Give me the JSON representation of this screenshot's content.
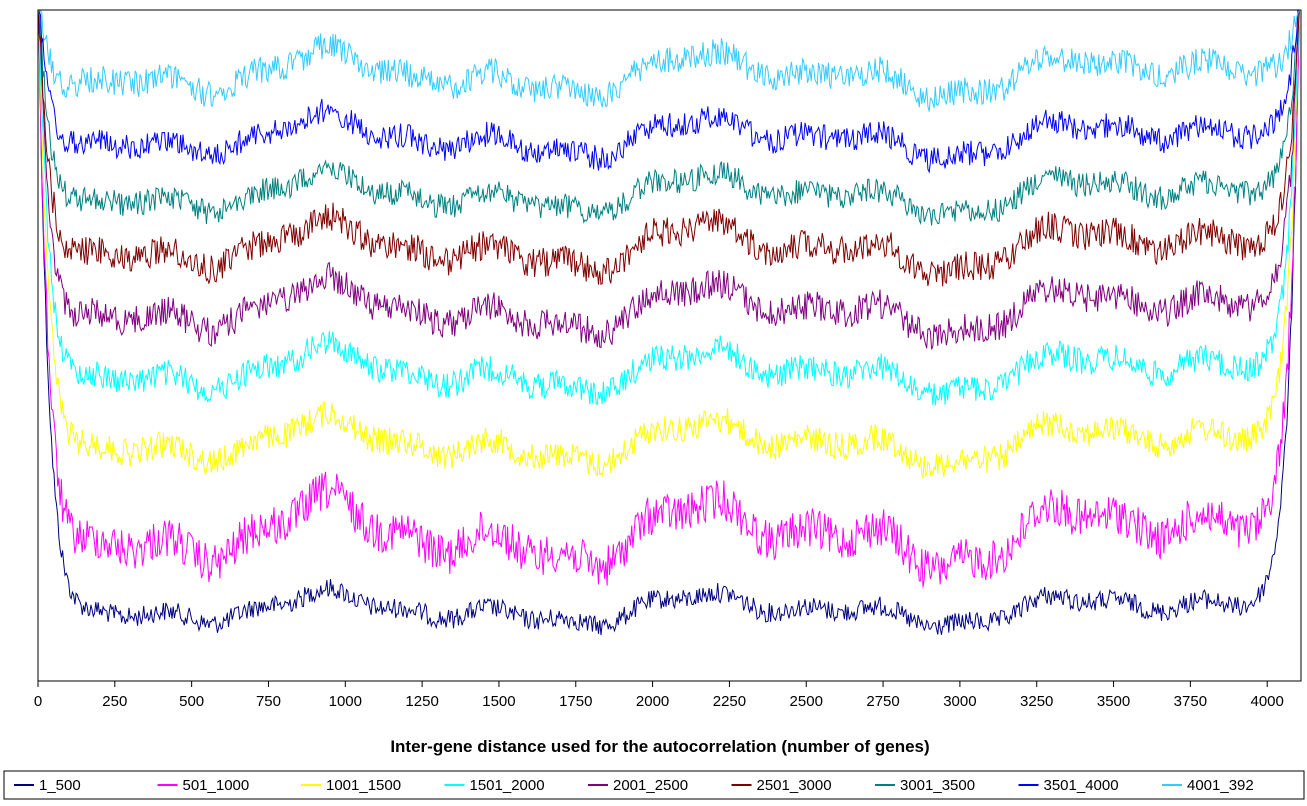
{
  "chart_data": {
    "type": "line",
    "title": "",
    "xlabel": "Inter-gene distance used for the autocorrelation (number of genes)",
    "ylabel": "",
    "xlim": [
      0,
      4110
    ],
    "xticks": [
      "0",
      "250",
      "500",
      "750",
      "1000",
      "1250",
      "1500",
      "1750",
      "2000",
      "2250",
      "2500",
      "2750",
      "3000",
      "3250",
      "3500",
      "3750",
      "4000"
    ],
    "y_axis_labels": false,
    "grid": false,
    "legend_position": "bottom",
    "series": [
      {
        "name": "1_500",
        "color": "#000080",
        "level": 600,
        "amplitude": 22
      },
      {
        "name": "501_1000",
        "color": "#ff00ff",
        "level": 525,
        "amplitude": 45
      },
      {
        "name": "1001_1500",
        "color": "#ffff00",
        "level": 433,
        "amplitude": 30
      },
      {
        "name": "1501_2000",
        "color": "#00ffff",
        "level": 362,
        "amplitude": 30
      },
      {
        "name": "2001_2500",
        "color": "#800080",
        "level": 300,
        "amplitude": 33
      },
      {
        "name": "2501_3000",
        "color": "#800000",
        "level": 238,
        "amplitude": 33
      },
      {
        "name": "3001_3500",
        "color": "#008080",
        "level": 185,
        "amplitude": 28
      },
      {
        "name": "3501_4000",
        "color": "#0000ff",
        "level": 128,
        "amplitude": 28
      },
      {
        "name": "4001_392",
        "color": "#33ccff",
        "level": 65,
        "amplitude": 30
      }
    ]
  }
}
